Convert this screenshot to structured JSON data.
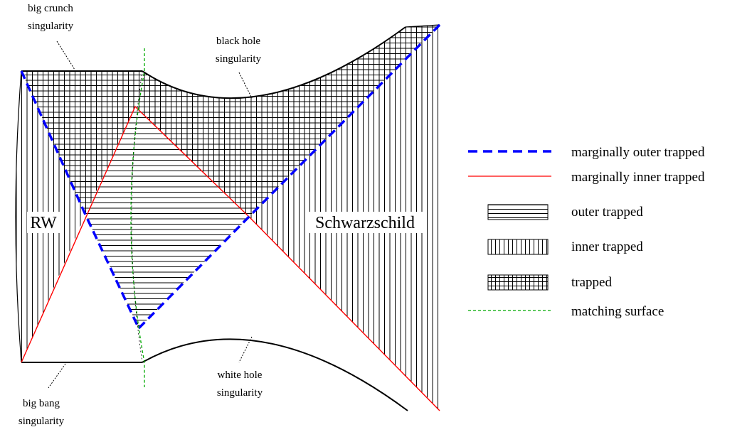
{
  "annotations": {
    "big_crunch_line1": "big crunch",
    "big_crunch_line2": "singularity",
    "black_hole_line1": "black hole",
    "black_hole_line2": "singularity",
    "white_hole_line1": "white hole",
    "white_hole_line2": "singularity",
    "big_bang_line1": "big bang",
    "big_bang_line2": "singularity"
  },
  "regions": {
    "left": "RW",
    "right": "Schwarzschild"
  },
  "legend": {
    "marginally_outer": "marginally outer trapped",
    "marginally_inner": "marginally inner trapped",
    "outer_trapped": "outer trapped",
    "inner_trapped": "inner trapped",
    "trapped": "trapped",
    "matching_surface": "matching surface"
  },
  "colors": {
    "marginally_outer": "#0000ff",
    "marginally_inner": "#ff0000",
    "matching_surface": "#00aa00",
    "hatch": "#000000"
  }
}
